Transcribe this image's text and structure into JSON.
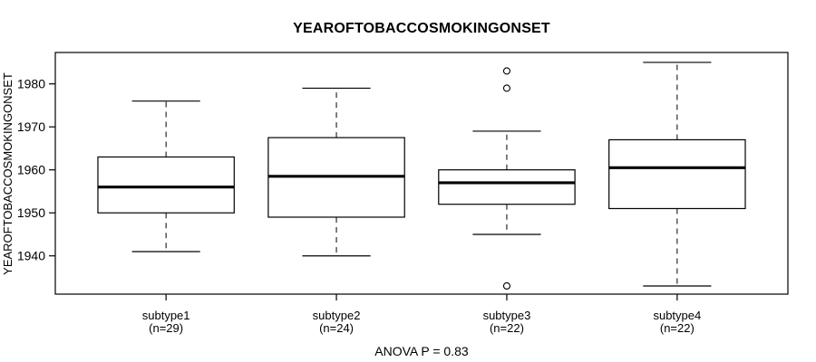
{
  "title": "YEAROFTOBACCOSMOKINGONSET",
  "caption": "ANOVA P = 0.83",
  "chart_data": {
    "type": "boxplot",
    "title": "YEAROFTOBACCOSMOKINGONSET",
    "ylabel": "YEAROFTOBACCOSMOKINGONSET",
    "xlabel": "",
    "annotation": "ANOVA P = 0.83",
    "ylim": [
      1931.1,
      1987.3
    ],
    "yticks": [
      1940,
      1950,
      1960,
      1970,
      1980
    ],
    "xlim": [
      0.35,
      4.65
    ],
    "grid": false,
    "box_color": "#ffffff",
    "stroke_color": "#000000",
    "background_color": "#ffffff",
    "groups": [
      {
        "label": "subtype1",
        "n_label": "(n=29)",
        "n": 29,
        "position": 1,
        "whisker_low": 1941,
        "q1": 1950,
        "median": 1956,
        "q3": 1963,
        "whisker_high": 1976,
        "outliers": []
      },
      {
        "label": "subtype2",
        "n_label": "(n=24)",
        "n": 24,
        "position": 2,
        "whisker_low": 1940,
        "q1": 1949,
        "median": 1958.5,
        "q3": 1967.5,
        "whisker_high": 1979,
        "outliers": []
      },
      {
        "label": "subtype3",
        "n_label": "(n=22)",
        "n": 22,
        "position": 3,
        "whisker_low": 1945,
        "q1": 1952,
        "median": 1957,
        "q3": 1960,
        "whisker_high": 1969,
        "outliers": [
          1983,
          1979,
          1933
        ]
      },
      {
        "label": "subtype4",
        "n_label": "(n=22)",
        "n": 22,
        "position": 4,
        "whisker_low": 1933,
        "q1": 1951,
        "median": 1960.5,
        "q3": 1967,
        "whisker_high": 1985,
        "outliers": []
      }
    ]
  }
}
